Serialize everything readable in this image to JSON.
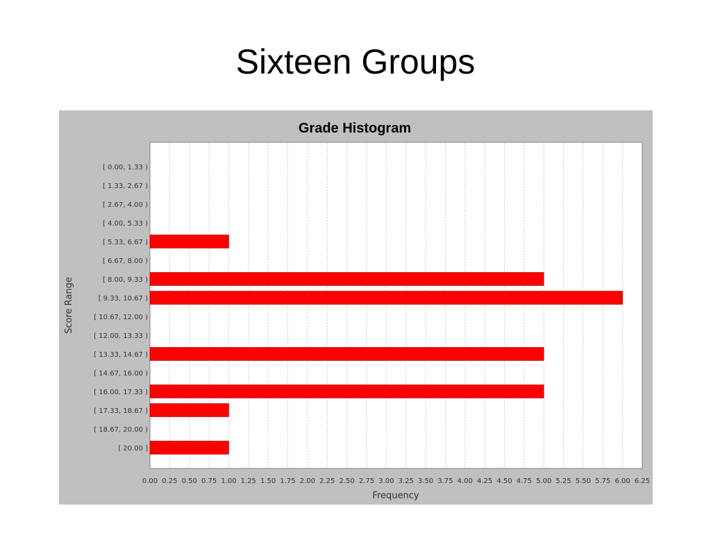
{
  "slide": {
    "title": "Sixteen Groups"
  },
  "chart_data": {
    "type": "bar",
    "orientation": "horizontal",
    "title": "Grade Histogram",
    "xlabel": "Frequency",
    "ylabel": "Score Range",
    "categories": [
      "[ 0.00, 1.33 )",
      "[ 1.33, 2.67 )",
      "[ 2.67, 4.00 )",
      "[ 4.00, 5.33 )",
      "[ 5.33, 6.67 )",
      "[ 6.67, 8.00 )",
      "[ 8.00, 9.33 )",
      "[ 9.33, 10.67 )",
      "[ 10.67, 12.00 )",
      "[ 12.00, 13.33 )",
      "[ 13.33, 14.67 )",
      "[ 14.67, 16.00 )",
      "[ 16.00, 17.33 )",
      "[ 17.33, 18.67 )",
      "[ 18.67, 20.00 )",
      "[ 20.00 ]"
    ],
    "values": [
      0,
      0,
      0,
      0,
      1,
      0,
      5,
      6,
      0,
      0,
      5,
      0,
      5,
      1,
      0,
      1
    ],
    "xlim": [
      0,
      6.25
    ],
    "xticks": [
      "0.00",
      "0.25",
      "0.50",
      "0.75",
      "1.00",
      "1.25",
      "1.50",
      "1.75",
      "2.00",
      "2.25",
      "2.50",
      "2.75",
      "3.00",
      "3.25",
      "3.50",
      "3.75",
      "4.00",
      "4.25",
      "4.50",
      "4.75",
      "5.00",
      "5.25",
      "5.50",
      "5.75",
      "6.00",
      "6.25"
    ],
    "grid": true,
    "legend": false,
    "bar_color": "#ff0000",
    "background_color": "#c0c0c0",
    "plot_color": "#ffffff"
  }
}
